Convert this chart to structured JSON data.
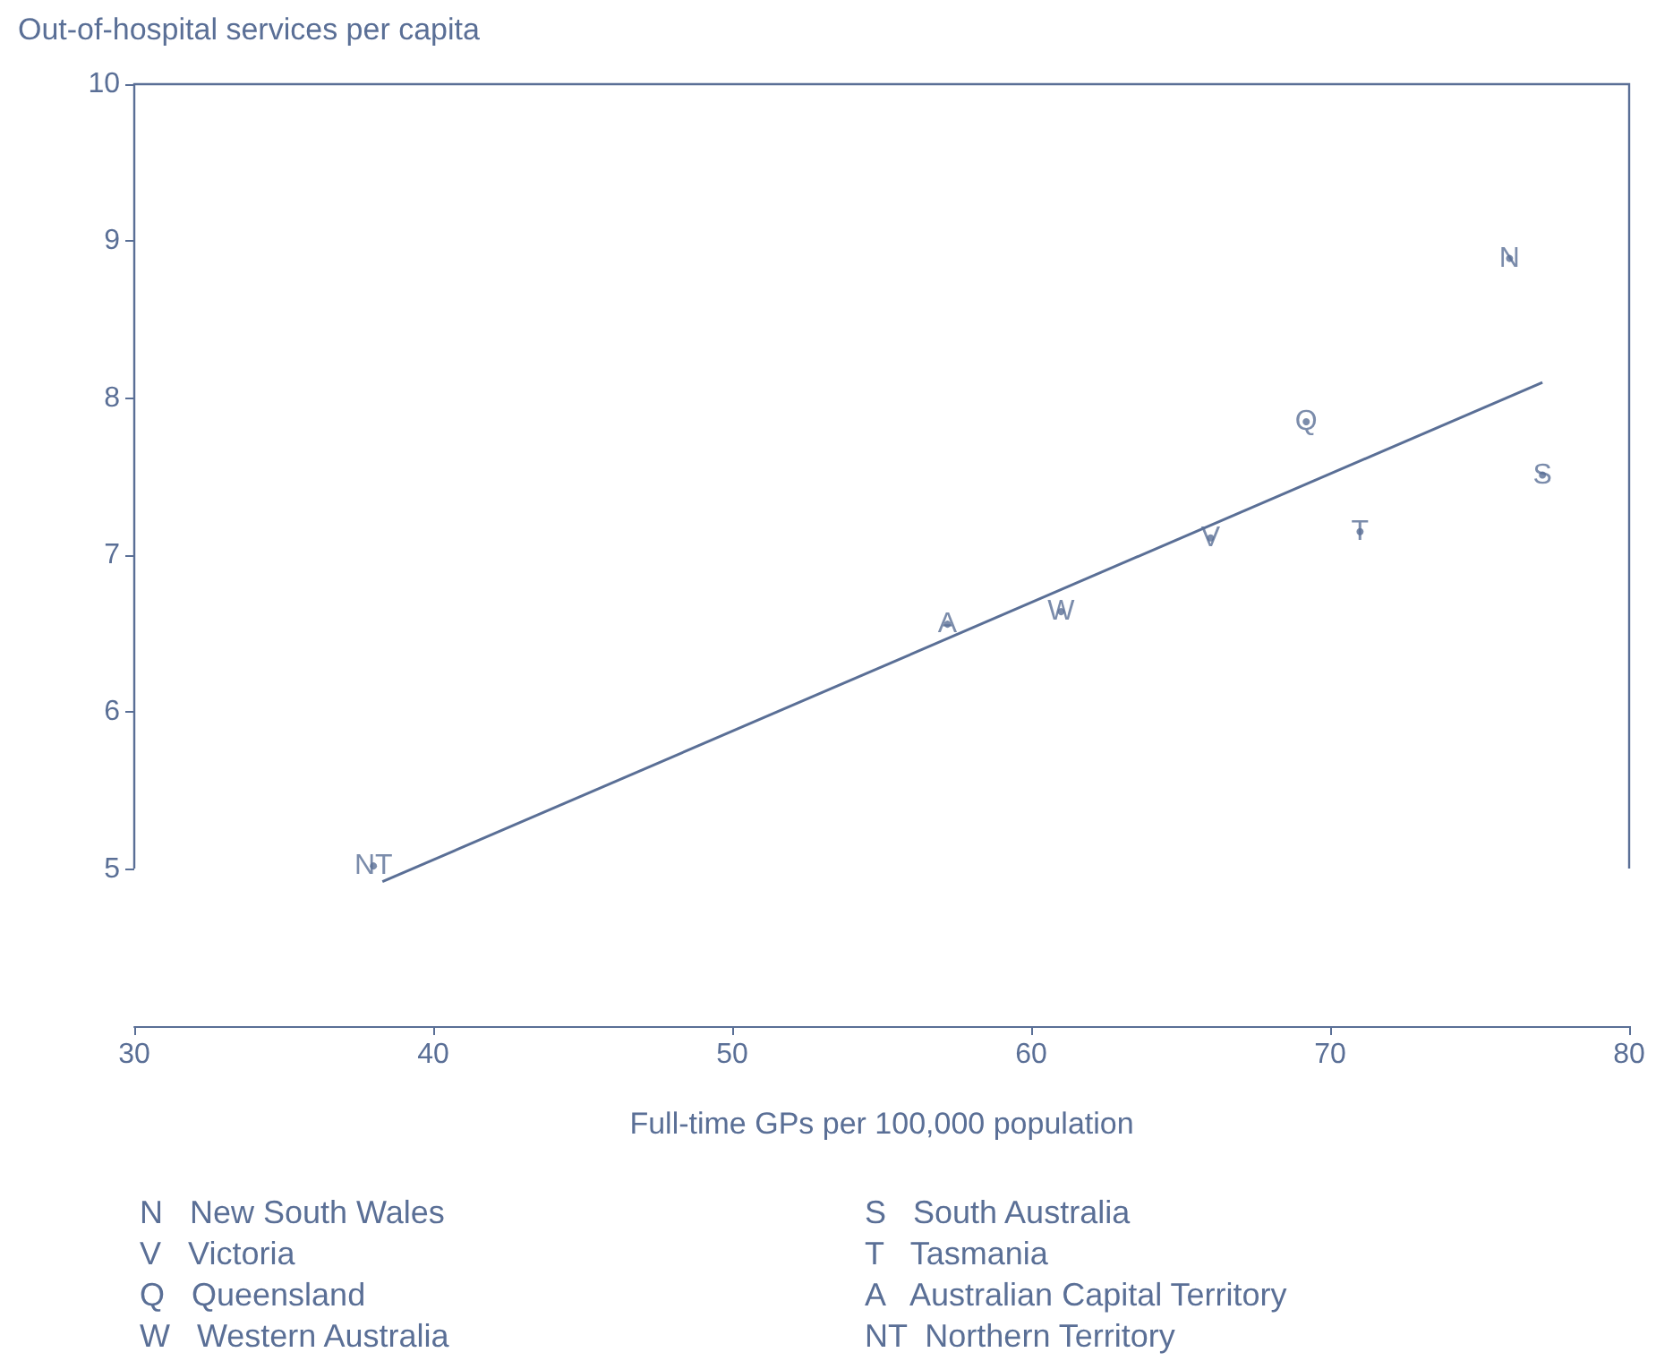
{
  "chart_data": {
    "type": "scatter",
    "xlabel": "Full-time GPs per 100,000 population",
    "ylabel": "Out-of-hospital services per capita",
    "xlim": [
      30,
      80
    ],
    "xticks": [
      30,
      40,
      50,
      60,
      70,
      80
    ],
    "ylim": [
      4,
      10
    ],
    "yticks": [
      5,
      6,
      7,
      8,
      9,
      10
    ],
    "marker": "none",
    "series": [
      {
        "color": "#5a6f96",
        "marker": "circle",
        "x": [
          76,
          69.2,
          77.1,
          66,
          71,
          61,
          57.2,
          38
        ],
        "values": [
          8.89,
          7.85,
          7.51,
          7.11,
          7.15,
          6.64,
          6.56,
          5.02
        ],
        "value_labels": [
          "N",
          "Q",
          "S",
          "V",
          "T",
          "W",
          "A",
          "NT"
        ]
      },
      {
        "type": "line",
        "color": "#5a6f96",
        "x": [
          38.3,
          77.1
        ],
        "values": [
          4.92,
          8.1
        ]
      }
    ],
    "annotations": [
      "N   New South Wales",
      "V   Victoria",
      "Q   Queensland",
      "W   Western Australia",
      "S   South Australia",
      "T   Tasmania",
      "A   Australian Capital Territory",
      "NT  Northern Territory"
    ]
  }
}
